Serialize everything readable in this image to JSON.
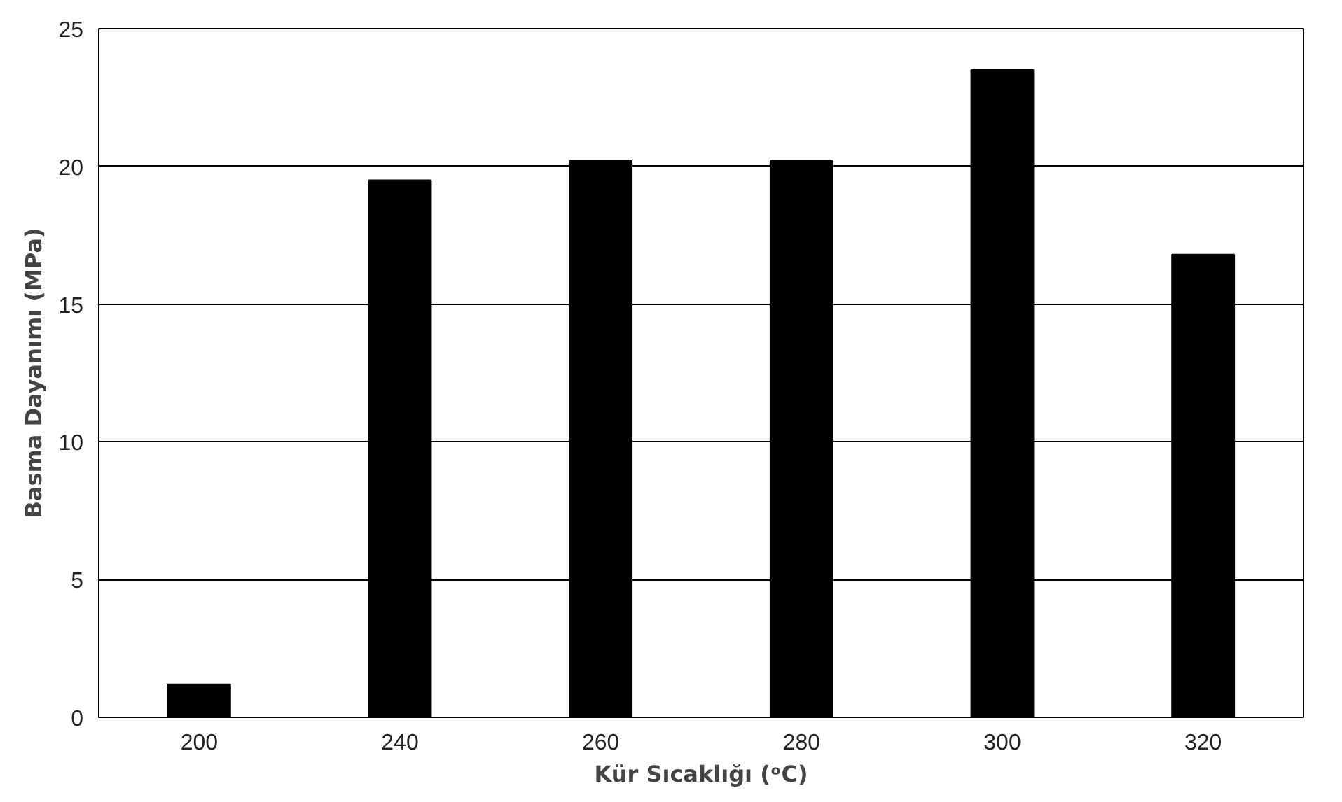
{
  "chart_data": {
    "type": "bar",
    "xlabel": "Kür Sıcaklığı (ᵒC)",
    "ylabel": "Basma Dayanımı (MPa)",
    "categories": [
      "200",
      "240",
      "260",
      "280",
      "300",
      "320"
    ],
    "values": [
      1.2,
      19.5,
      20.2,
      20.2,
      23.5,
      16.8
    ],
    "color": "#000000",
    "ylim": [
      0,
      25
    ],
    "yticks": [
      0,
      5,
      10,
      15,
      20,
      25
    ],
    "grid": "y"
  }
}
